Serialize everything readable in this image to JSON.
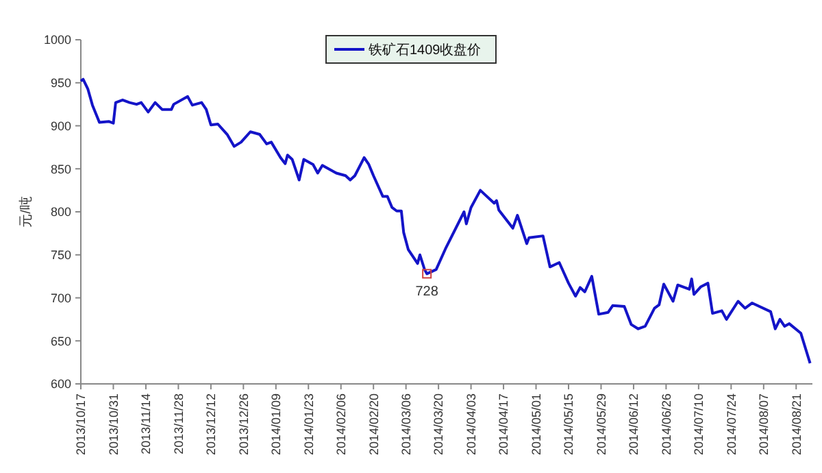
{
  "chart_data": {
    "type": "line",
    "ylabel": "元/吨",
    "legend": "top",
    "grid": false,
    "marker": "none",
    "line_style": "solid",
    "ylim": [
      600,
      1000
    ],
    "yticks": [
      600,
      650,
      700,
      750,
      800,
      850,
      900,
      950,
      1000
    ],
    "xlim": [
      "2013-10-17",
      "2014-08-28"
    ],
    "xticks": [
      {
        "value": "2013-10-17",
        "label": "2013/10/17"
      },
      {
        "value": "2013-10-31",
        "label": "2013/10/31"
      },
      {
        "value": "2013-11-14",
        "label": "2013/11/14"
      },
      {
        "value": "2013-11-28",
        "label": "2013/11/28"
      },
      {
        "value": "2013-12-12",
        "label": "2013/12/12"
      },
      {
        "value": "2013-12-26",
        "label": "2013/12/26"
      },
      {
        "value": "2014-01-09",
        "label": "2014/01/09"
      },
      {
        "value": "2014-01-23",
        "label": "2014/01/23"
      },
      {
        "value": "2014-02-06",
        "label": "2014/02/06"
      },
      {
        "value": "2014-02-20",
        "label": "2014/02/20"
      },
      {
        "value": "2014-03-06",
        "label": "2014/03/06"
      },
      {
        "value": "2014-03-20",
        "label": "2014/03/20"
      },
      {
        "value": "2014-04-03",
        "label": "2014/04/03"
      },
      {
        "value": "2014-04-17",
        "label": "2014/04/17"
      },
      {
        "value": "2014-05-01",
        "label": "2014/05/01"
      },
      {
        "value": "2014-05-15",
        "label": "2014/05/15"
      },
      {
        "value": "2014-05-29",
        "label": "2014/05/29"
      },
      {
        "value": "2014-06-12",
        "label": "2014/06/12"
      },
      {
        "value": "2014-06-26",
        "label": "2014/06/26"
      },
      {
        "value": "2014-07-10",
        "label": "2014/07/10"
      },
      {
        "value": "2014-07-24",
        "label": "2014/07/24"
      },
      {
        "value": "2014-08-07",
        "label": "2014/08/07"
      },
      {
        "value": "2014-08-21",
        "label": "2014/08/21"
      }
    ],
    "annotations": [
      {
        "text": "728",
        "x": "2014-03-15",
        "y": 728
      }
    ],
    "series": [
      {
        "name": "铁矿石1409收盘价",
        "color": "#1414c8",
        "x": [
          "2013-10-17",
          "2013-10-18",
          "2013-10-20",
          "2013-10-22",
          "2013-10-25",
          "2013-10-29",
          "2013-10-31",
          "2013-11-01",
          "2013-11-04",
          "2013-11-07",
          "2013-11-10",
          "2013-11-12",
          "2013-11-15",
          "2013-11-18",
          "2013-11-21",
          "2013-11-25",
          "2013-11-26",
          "2013-12-02",
          "2013-12-04",
          "2013-12-08",
          "2013-12-10",
          "2013-12-12",
          "2013-12-15",
          "2013-12-19",
          "2013-12-22",
          "2013-12-25",
          "2013-12-29",
          "2014-01-02",
          "2014-01-05",
          "2014-01-07",
          "2014-01-11",
          "2014-01-13",
          "2014-01-14",
          "2014-01-16",
          "2014-01-19",
          "2014-01-21",
          "2014-01-25",
          "2014-01-27",
          "2014-01-29",
          "2014-02-04",
          "2014-02-08",
          "2014-02-10",
          "2014-02-12",
          "2014-02-16",
          "2014-02-18",
          "2014-02-20",
          "2014-02-24",
          "2014-02-26",
          "2014-02-28",
          "2014-03-02",
          "2014-03-04",
          "2014-03-05",
          "2014-03-07",
          "2014-03-11",
          "2014-03-12",
          "2014-03-14",
          "2014-03-15",
          "2014-03-19",
          "2014-03-23",
          "2014-03-31",
          "2014-04-01",
          "2014-04-03",
          "2014-04-07",
          "2014-04-13",
          "2014-04-14",
          "2014-04-15",
          "2014-04-21",
          "2014-04-23",
          "2014-04-27",
          "2014-04-28",
          "2014-05-04",
          "2014-05-07",
          "2014-05-11",
          "2014-05-15",
          "2014-05-18",
          "2014-05-20",
          "2014-05-22",
          "2014-05-25",
          "2014-05-28",
          "2014-06-01",
          "2014-06-03",
          "2014-06-08",
          "2014-06-11",
          "2014-06-14",
          "2014-06-17",
          "2014-06-21",
          "2014-06-23",
          "2014-06-25",
          "2014-06-29",
          "2014-07-01",
          "2014-07-06",
          "2014-07-07",
          "2014-07-08",
          "2014-07-11",
          "2014-07-14",
          "2014-07-16",
          "2014-07-20",
          "2014-07-22",
          "2014-07-27",
          "2014-07-30",
          "2014-08-02",
          "2014-08-10",
          "2014-08-12",
          "2014-08-14",
          "2014-08-16",
          "2014-08-18",
          "2014-08-23",
          "2014-08-27"
        ],
        "values": [
          952,
          954,
          943,
          924,
          904,
          905,
          903,
          927,
          930,
          927,
          925,
          927,
          916,
          927,
          919,
          919,
          925,
          934,
          924,
          927,
          919,
          901,
          902,
          890,
          876,
          881,
          893,
          890,
          879,
          881,
          863,
          856,
          866,
          861,
          837,
          861,
          855,
          845,
          854,
          845,
          842,
          837,
          842,
          863,
          855,
          842,
          818,
          818,
          805,
          801,
          801,
          776,
          756,
          740,
          750,
          733,
          728,
          733,
          757,
          800,
          786,
          805,
          825,
          810,
          813,
          802,
          781,
          796,
          763,
          770,
          772,
          736,
          741,
          717,
          702,
          712,
          707,
          725,
          681,
          683,
          691,
          690,
          669,
          664,
          667,
          688,
          692,
          716,
          696,
          715,
          710,
          722,
          704,
          713,
          717,
          682,
          685,
          675,
          696,
          688,
          694,
          684,
          664,
          675,
          667,
          670,
          659,
          624
        ]
      }
    ]
  }
}
